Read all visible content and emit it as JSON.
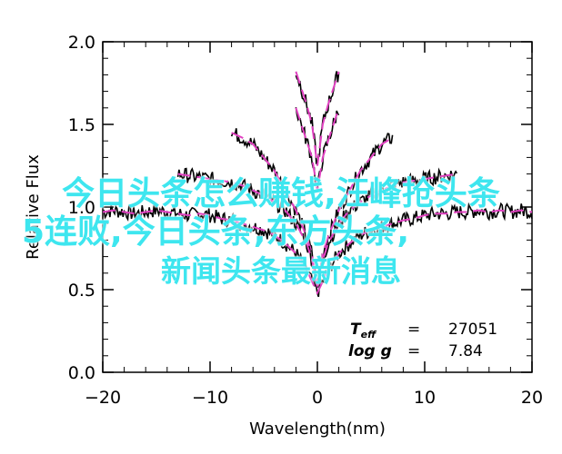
{
  "chart_data": {
    "type": "line",
    "xlabel": "Wavelength(nm)",
    "ylabel": "Relative Flux",
    "xlim": [
      -20,
      20
    ],
    "ylim": [
      0.0,
      2.0
    ],
    "xticks": [
      "−20",
      "−10",
      "0",
      "10",
      "20"
    ],
    "yticks": [
      "0.0",
      "0.5",
      "1.0",
      "1.5",
      "2.0"
    ],
    "series_colors": {
      "observed": "#000000",
      "model": "#e040c0"
    },
    "series": [
      {
        "x": [
          -20,
          -19,
          -18,
          -17,
          -16,
          -15,
          -14,
          -13,
          -12,
          -11,
          -10,
          -9,
          -8,
          -7,
          -6,
          -5,
          -4,
          -3,
          -2,
          -1,
          -0.5,
          0,
          0.5,
          1,
          2,
          3,
          4,
          5,
          6,
          7,
          8,
          9,
          10,
          11,
          12,
          13,
          14,
          15,
          16,
          17,
          18,
          19,
          20
        ],
        "y": [
          0.97,
          0.98,
          0.97,
          0.96,
          0.97,
          0.98,
          0.97,
          0.96,
          0.95,
          0.96,
          0.95,
          0.93,
          0.92,
          0.9,
          0.88,
          0.86,
          0.83,
          0.78,
          0.72,
          0.62,
          0.55,
          0.48,
          0.55,
          0.62,
          0.72,
          0.78,
          0.83,
          0.86,
          0.88,
          0.9,
          0.92,
          0.93,
          0.95,
          0.96,
          0.96,
          0.97,
          0.97,
          0.98,
          0.97,
          0.98,
          0.97,
          0.98,
          0.97
        ]
      },
      {
        "x": [
          -8,
          -7,
          -6,
          -5,
          -4,
          -3,
          -2,
          -1,
          -0.5,
          0,
          0.5,
          1,
          2,
          3,
          4,
          5,
          6,
          7
        ],
        "y": [
          1.45,
          1.42,
          1.38,
          1.3,
          1.22,
          1.1,
          0.98,
          0.82,
          0.72,
          0.5,
          0.72,
          0.82,
          0.98,
          1.1,
          1.22,
          1.3,
          1.38,
          1.42
        ]
      },
      {
        "x": [
          -13,
          -12,
          -11,
          -10,
          -9,
          -8,
          -7,
          -6,
          -5,
          -4,
          -3,
          -2,
          -1,
          -0.5,
          0,
          0.5,
          1,
          2,
          3,
          4,
          5,
          6,
          7,
          8,
          9,
          10,
          11,
          12,
          13
        ],
        "y": [
          1.2,
          1.19,
          1.18,
          1.17,
          1.16,
          1.15,
          1.13,
          1.1,
          1.07,
          1.03,
          0.98,
          0.9,
          0.78,
          0.68,
          0.52,
          0.68,
          0.78,
          0.9,
          0.98,
          1.03,
          1.07,
          1.1,
          1.13,
          1.15,
          1.16,
          1.17,
          1.18,
          1.19,
          1.2
        ]
      },
      {
        "x": [
          -2,
          -1.5,
          -1,
          -0.5,
          0,
          0.5,
          1,
          1.5,
          2
        ],
        "y": [
          1.82,
          1.72,
          1.62,
          1.5,
          1.25,
          1.5,
          1.62,
          1.72,
          1.82
        ]
      },
      {
        "x": [
          -2,
          -1.5,
          -1,
          -0.5,
          0,
          0.5,
          1,
          1.5,
          2
        ],
        "y": [
          1.6,
          1.5,
          1.4,
          1.3,
          1.1,
          1.3,
          1.4,
          1.5,
          1.6
        ]
      }
    ],
    "annotations": [
      {
        "label": "T",
        "sub": "eff",
        "eq": "=",
        "value": "27051"
      },
      {
        "label": "log g",
        "eq": "=",
        "value": "7.84"
      }
    ]
  },
  "overlay": {
    "line1": "今日头条怎么赚钱,汪峰抢头条",
    "line2": "5连败,今日头条,东方头条,",
    "line3": "新闻头条最新消息"
  }
}
